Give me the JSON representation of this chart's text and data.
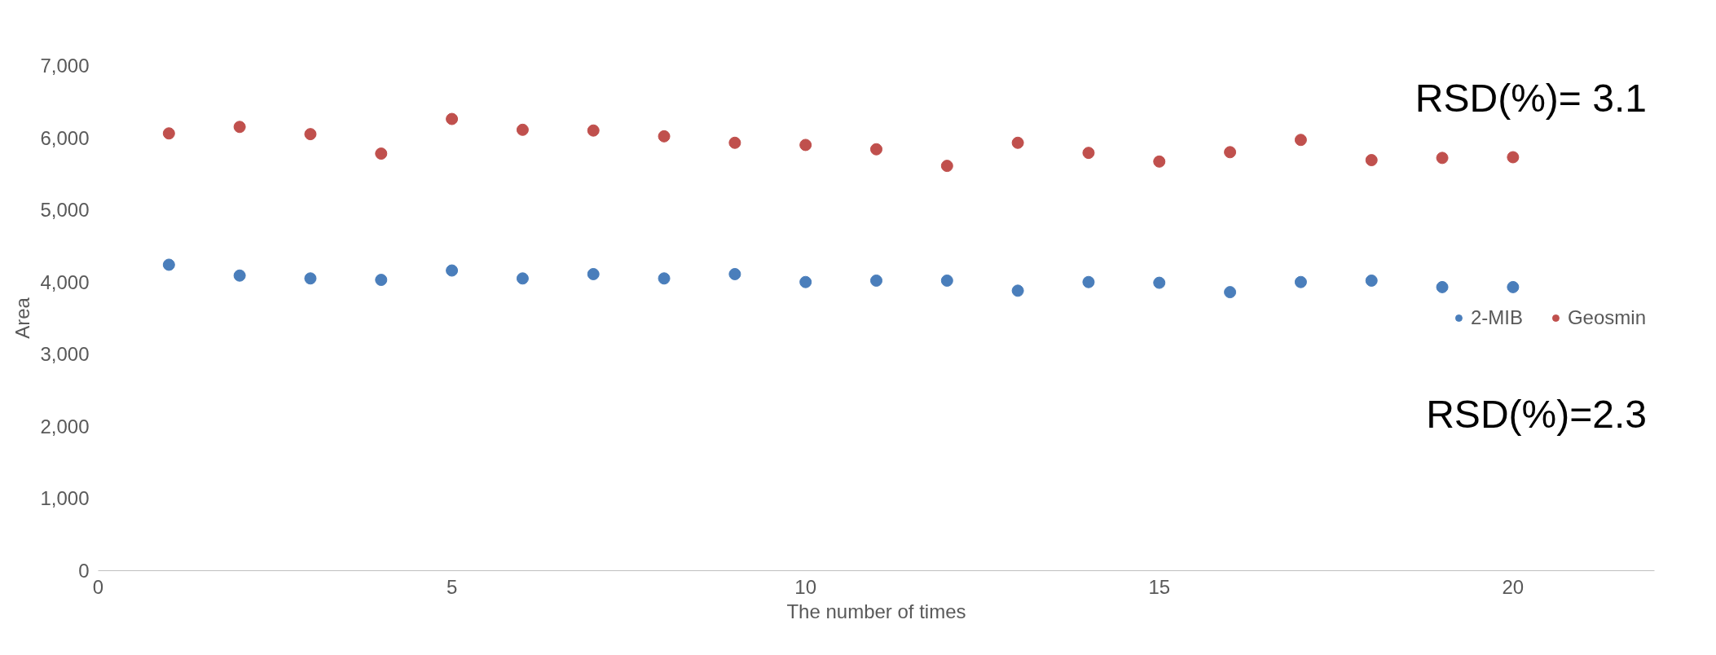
{
  "chart_data": {
    "type": "scatter",
    "xlabel": "The number of times",
    "ylabel": "Area",
    "x": [
      1,
      2,
      3,
      4,
      5,
      6,
      7,
      8,
      9,
      10,
      11,
      12,
      13,
      14,
      15,
      16,
      17,
      18,
      19,
      20
    ],
    "series": [
      {
        "name": "2-MIB",
        "color": "#4a7ebb",
        "values": [
          4240,
          4090,
          4050,
          4030,
          4160,
          4050,
          4110,
          4050,
          4110,
          4000,
          4020,
          4020,
          3880,
          4000,
          3990,
          3860,
          4000,
          4020,
          3930,
          3930
        ]
      },
      {
        "name": "Geosmin",
        "color": "#c0504d",
        "values": [
          6060,
          6150,
          6050,
          5780,
          6260,
          6110,
          6100,
          6020,
          5930,
          5900,
          5840,
          5610,
          5930,
          5790,
          5670,
          5800,
          5970,
          5690,
          5720,
          5730
        ]
      }
    ],
    "xlim": [
      0,
      22
    ],
    "xticks": [
      0,
      5,
      10,
      15,
      20
    ],
    "ylim": [
      0,
      7000
    ],
    "yticks": [
      0,
      {
        "value": 1000,
        "label": "1,000"
      },
      {
        "value": 2000,
        "label": "2,000"
      },
      {
        "value": 3000,
        "label": "3,000"
      },
      {
        "value": 4000,
        "label": "4,000"
      },
      {
        "value": 5000,
        "label": "5,000"
      },
      {
        "value": 6000,
        "label": "6,000"
      },
      {
        "value": 7000,
        "label": "7,000"
      }
    ],
    "annotations": [
      "RSD(%)= 3.1",
      "RSD(%)=2.3"
    ],
    "marker": "circle",
    "legend": "right",
    "grid": false
  }
}
